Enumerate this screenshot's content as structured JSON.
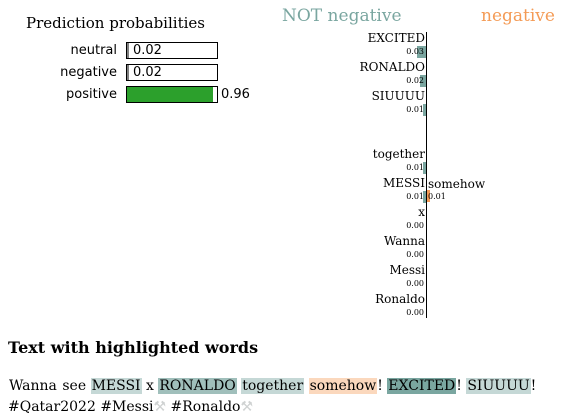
{
  "prediction": {
    "title": "Prediction probabilities",
    "classes": [
      {
        "label": "neutral",
        "value": 0.02,
        "display": "0.02",
        "color": "#ffffff"
      },
      {
        "label": "negative",
        "value": 0.02,
        "display": "0.02",
        "color": "#ffffff"
      },
      {
        "label": "positive",
        "value": 0.96,
        "display": "0.96",
        "color": "#2ca02c"
      }
    ]
  },
  "headers": {
    "not_label": "NOT negative",
    "label": "negative",
    "not_color": "#7aa6a0",
    "label_color": "#f49b56"
  },
  "chart_data": {
    "type": "bar",
    "title": "",
    "orientation": "horizontal",
    "categories": [
      "EXCITED",
      "RONALDO",
      "SIUUUU",
      "somehow",
      "together",
      "MESSI",
      "x",
      "Wanna",
      "Messi",
      "Ronaldo"
    ],
    "display_values": [
      "0.03",
      "0.02",
      "0.01",
      "0.01",
      "0.01",
      "0.01",
      "0.00",
      "0.00",
      "0.00",
      "0.00"
    ],
    "values": [
      -0.03,
      -0.02,
      -0.01,
      0.01,
      -0.01,
      -0.01,
      0.0,
      0.0,
      0.0,
      0.0
    ],
    "series": [
      {
        "name": "NOT negative",
        "color": "#7aa6a0"
      },
      {
        "name": "negative",
        "color": "#f49b56"
      }
    ]
  },
  "text_section": {
    "title": "Text with highlighted words",
    "tokens": [
      {
        "t": "Wanna",
        "w": 0
      },
      {
        "t": " see ",
        "w": null
      },
      {
        "t": "MESSI",
        "w": -0.01
      },
      {
        "t": " x ",
        "w": null
      },
      {
        "t": "RONALDO",
        "w": -0.02
      },
      {
        "t": " ",
        "w": null
      },
      {
        "t": "together",
        "w": -0.01
      },
      {
        "t": " ",
        "w": null
      },
      {
        "t": "somehow",
        "w": 0.01
      },
      {
        "t": "! ",
        "w": null
      },
      {
        "t": "EXCITED",
        "w": -0.03
      },
      {
        "t": "! ",
        "w": null
      },
      {
        "t": "SIUUUU",
        "w": -0.01
      },
      {
        "t": "! #Qatar2022 ",
        "w": null
      },
      {
        "t": "#Messi",
        "w": null
      },
      {
        "t": "⚒ ",
        "w": null,
        "sym": true
      },
      {
        "t": "#Ronaldo",
        "w": null
      },
      {
        "t": "⚒",
        "w": null,
        "sym": true
      }
    ]
  }
}
